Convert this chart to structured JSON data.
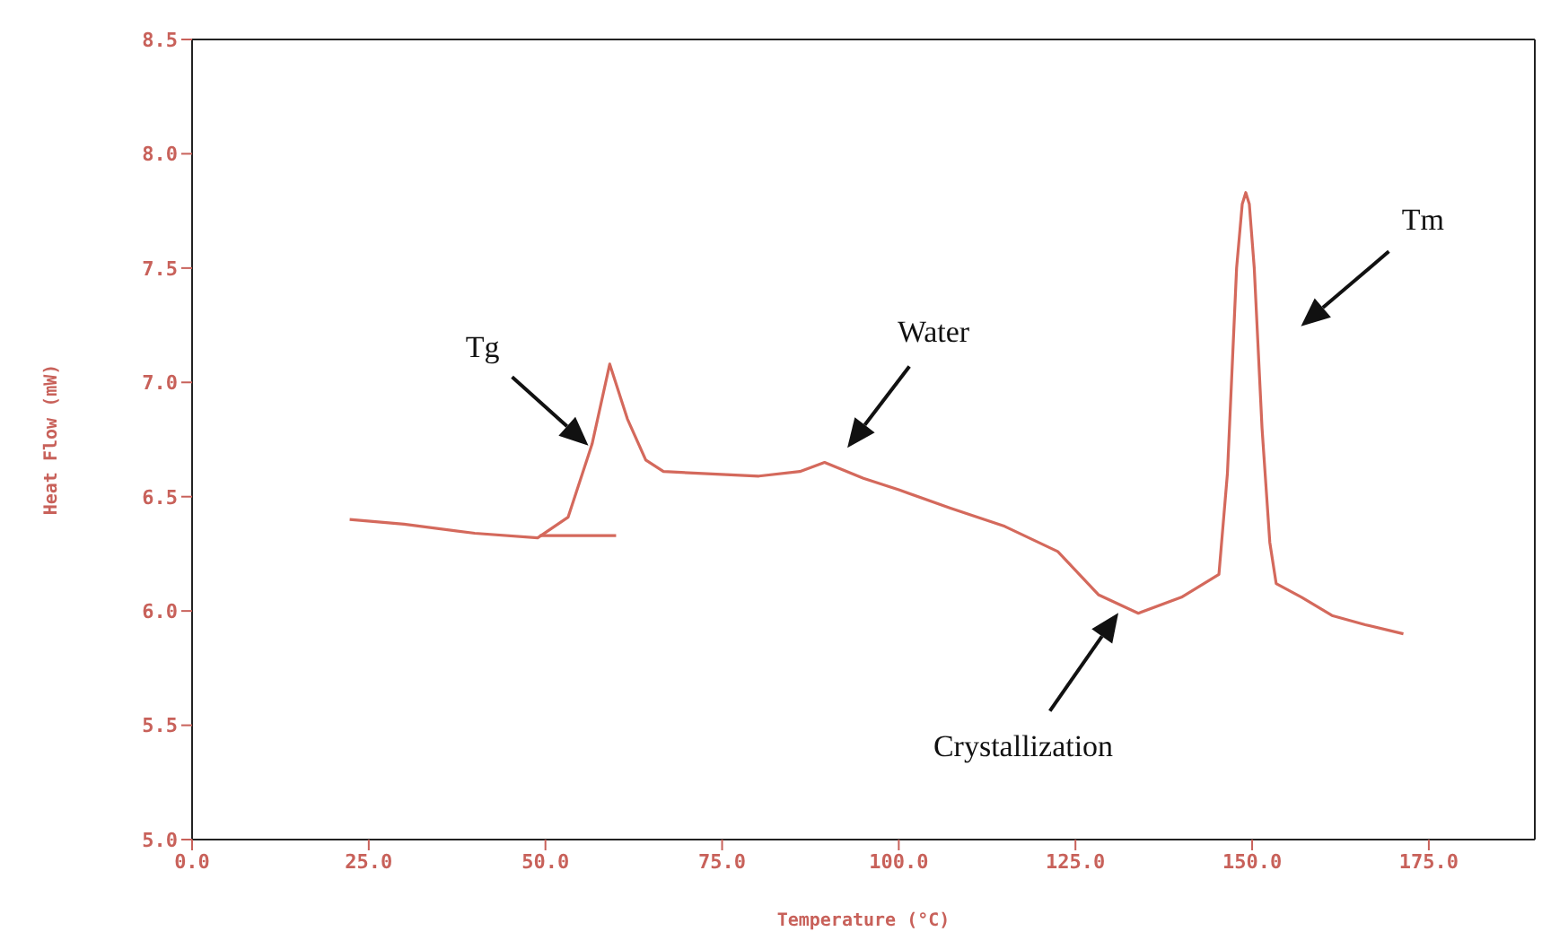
{
  "chart_data": {
    "type": "line",
    "xlabel": "Temperature (°C)",
    "ylabel": "Heat Flow (mW)",
    "xlim": [
      0,
      190
    ],
    "xticks": [
      {
        "value": 0,
        "label": "0.0"
      },
      {
        "value": 25,
        "label": "25.0"
      },
      {
        "value": 50,
        "label": "50.0"
      },
      {
        "value": 75,
        "label": "75.0"
      },
      {
        "value": 100,
        "label": "100.0"
      },
      {
        "value": 125,
        "label": "125.0"
      },
      {
        "value": 150,
        "label": "150.0"
      },
      {
        "value": 175,
        "label": "175.0"
      }
    ],
    "ylim": [
      5,
      8.5
    ],
    "yticks": [
      {
        "value": 5,
        "label": "5.0"
      },
      {
        "value": 5.5,
        "label": "5.5"
      },
      {
        "value": 6,
        "label": "6.0"
      },
      {
        "value": 6.5,
        "label": "6.5"
      },
      {
        "value": 7,
        "label": "7.0"
      },
      {
        "value": 7.5,
        "label": "7.5"
      },
      {
        "value": 8,
        "label": "8.0"
      },
      {
        "value": 8.5,
        "label": "8.5"
      }
    ],
    "series": [
      {
        "color": "#d4695c",
        "x": [
          22.3,
          30,
          40,
          48.9,
          53.2,
          56.6,
          59.1,
          61.6,
          64.2,
          66.7,
          80.2,
          86,
          89.5,
          95,
          100,
          107.3,
          115,
          122.5,
          128.3,
          133.9,
          140,
          145.3,
          146.5,
          147.8,
          148.6,
          149.1,
          149.6,
          150.3,
          151.4,
          152.5,
          153.4,
          157,
          161.3,
          166,
          171.4
        ],
        "values": [
          6.4,
          6.38,
          6.34,
          6.32,
          6.41,
          6.73,
          7.08,
          6.84,
          6.66,
          6.61,
          6.59,
          6.61,
          6.65,
          6.58,
          6.53,
          6.45,
          6.37,
          6.26,
          6.07,
          5.99,
          6.06,
          6.16,
          6.6,
          7.5,
          7.78,
          7.83,
          7.78,
          7.5,
          6.8,
          6.3,
          6.12,
          6.06,
          5.98,
          5.94,
          5.9
        ]
      },
      {
        "color": "#d4695c",
        "x": [
          49.2,
          60
        ],
        "values": [
          6.33,
          6.33
        ]
      }
    ],
    "annotations": [
      "Tg",
      "Water",
      "Crystallization",
      "Tm"
    ]
  }
}
